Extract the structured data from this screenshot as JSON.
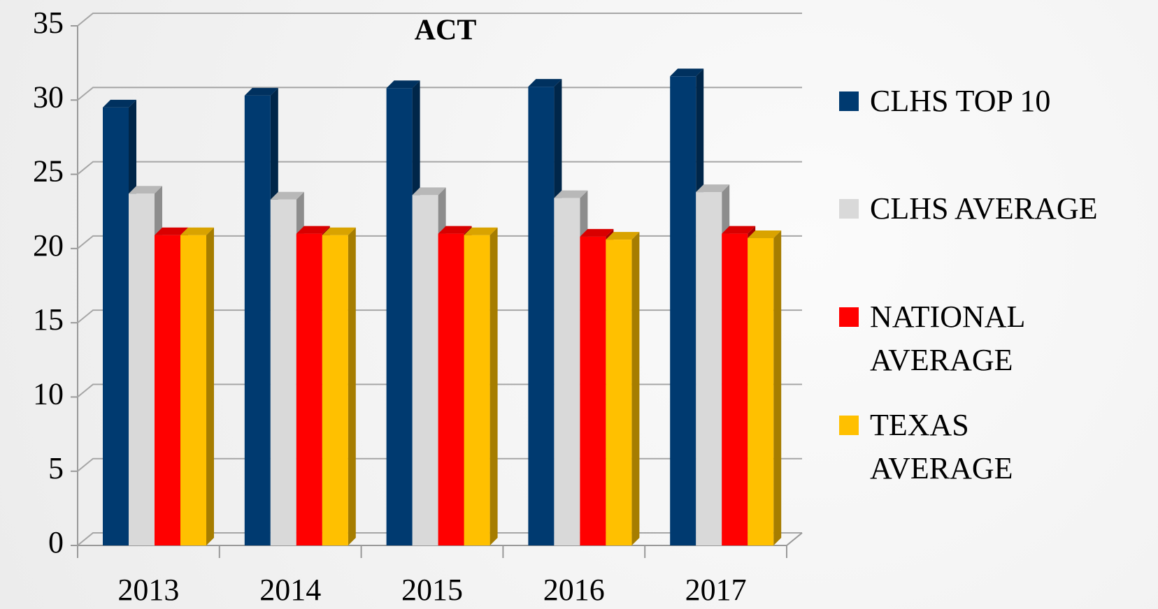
{
  "chart_data": {
    "type": "bar",
    "title": "ACT",
    "categories": [
      "2013",
      "2014",
      "2015",
      "2016",
      "2017"
    ],
    "series": [
      {
        "name": "CLHS TOP 10",
        "color": "#003a70",
        "values": [
          29.5,
          30.3,
          30.8,
          30.9,
          31.6
        ]
      },
      {
        "name": "CLHS AVERAGE",
        "color": "#d9d9d9",
        "values": [
          23.7,
          23.3,
          23.6,
          23.4,
          23.8
        ]
      },
      {
        "name": "NATIONAL AVERAGE",
        "color": "#ff0000",
        "values": [
          20.9,
          21.0,
          21.0,
          20.8,
          21.0
        ]
      },
      {
        "name": "TEXAS AVERAGE",
        "color": "#ffc000",
        "values": [
          20.9,
          20.9,
          20.9,
          20.6,
          20.7
        ]
      }
    ],
    "ylim": [
      0,
      35
    ],
    "yticks": [
      0,
      5,
      10,
      15,
      20,
      25,
      30,
      35
    ],
    "grid": true,
    "legend": "right"
  }
}
